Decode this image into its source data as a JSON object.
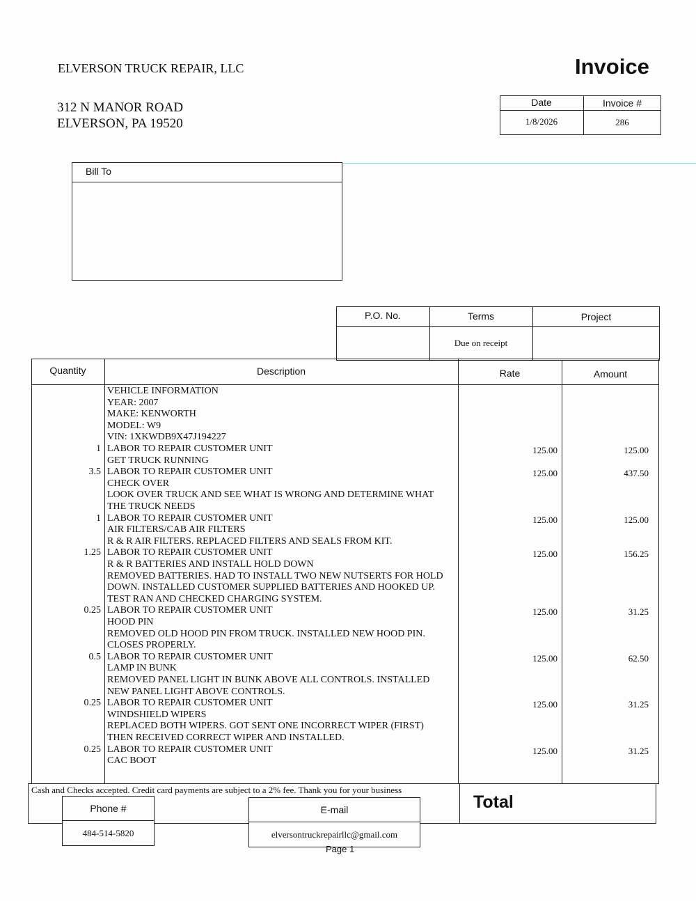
{
  "company": {
    "name": "ELVERSON TRUCK REPAIR, LLC",
    "address_line1": "312 N MANOR ROAD",
    "address_line2": "ELVERSON, PA  19520"
  },
  "doc_title": "Invoice",
  "meta": {
    "date_label": "Date",
    "date": "1/8/2026",
    "invoice_label": "Invoice #",
    "invoice_no": "286"
  },
  "bill_to": {
    "label": "Bill To"
  },
  "po_table": {
    "po_label": "P.O. No.",
    "terms_label": "Terms",
    "project_label": "Project",
    "po": "",
    "terms": "Due on receipt",
    "project": ""
  },
  "items_header": {
    "quantity": "Quantity",
    "description": "Description",
    "rate": "Rate",
    "amount": "Amount"
  },
  "items": [
    {
      "qty": "",
      "rate": "",
      "amount": "",
      "lines": [
        "VEHICLE INFORMATION",
        "YEAR:  2007",
        "MAKE:  KENWORTH",
        "MODEL:  W9",
        "VIN:  1XKWDB9X47J194227"
      ]
    },
    {
      "qty": "1",
      "rate": "125.00",
      "amount": "125.00",
      "lines": [
        "LABOR TO REPAIR CUSTOMER UNIT",
        "GET TRUCK RUNNING"
      ]
    },
    {
      "qty": "3.5",
      "rate": "125.00",
      "amount": "437.50",
      "lines": [
        "LABOR TO REPAIR CUSTOMER UNIT",
        "CHECK OVER",
        "LOOK OVER TRUCK AND SEE WHAT IS WRONG AND DETERMINE WHAT",
        "THE TRUCK NEEDS"
      ]
    },
    {
      "qty": "1",
      "rate": "125.00",
      "amount": "125.00",
      "lines": [
        "LABOR TO REPAIR CUSTOMER UNIT",
        "AIR FILTERS/CAB AIR FILTERS",
        "R & R AIR FILTERS.  REPLACED FILTERS AND SEALS FROM KIT."
      ]
    },
    {
      "qty": "1.25",
      "rate": "125.00",
      "amount": "156.25",
      "lines": [
        "LABOR TO REPAIR CUSTOMER UNIT",
        "R & R BATTERIES AND INSTALL HOLD DOWN",
        "REMOVED BATTERIES.  HAD TO INSTALL TWO NEW NUTSERTS FOR HOLD",
        "DOWN.  INSTALLED CUSTOMER SUPPLIED BATTERIES AND HOOKED UP.",
        "TEST RAN AND CHECKED CHARGING SYSTEM."
      ]
    },
    {
      "qty": "0.25",
      "rate": "125.00",
      "amount": "31.25",
      "lines": [
        "LABOR TO REPAIR CUSTOMER UNIT",
        "HOOD PIN",
        "REMOVED OLD HOOD PIN FROM TRUCK.  INSTALLED NEW HOOD PIN.",
        "CLOSES PROPERLY."
      ]
    },
    {
      "qty": "0.5",
      "rate": "125.00",
      "amount": "62.50",
      "lines": [
        "LABOR TO REPAIR CUSTOMER UNIT",
        "LAMP IN BUNK",
        "REMOVED PANEL LIGHT IN BUNK ABOVE ALL CONTROLS.  INSTALLED",
        "NEW PANEL LIGHT ABOVE CONTROLS."
      ]
    },
    {
      "qty": "0.25",
      "rate": "125.00",
      "amount": "31.25",
      "lines": [
        "LABOR TO REPAIR CUSTOMER UNIT",
        "WINDSHIELD WIPERS",
        "REPLACED BOTH WIPERS.  GOT SENT ONE INCORRECT WIPER (FIRST)",
        "THEN RECEIVED CORRECT WIPER AND INSTALLED."
      ]
    },
    {
      "qty": "0.25",
      "rate": "125.00",
      "amount": "31.25",
      "lines": [
        "LABOR TO REPAIR CUSTOMER UNIT",
        "CAC BOOT"
      ]
    }
  ],
  "footer": {
    "note": "Cash and Checks accepted.  Credit card payments are subject to a 2% fee.  Thank you for your business",
    "total_label": "Total",
    "total_value": "",
    "phone_label": "Phone #",
    "phone": "484-514-5820",
    "email_label": "E-mail",
    "email": "elversontruckrepairllc@gmail.com",
    "page": "Page 1"
  }
}
